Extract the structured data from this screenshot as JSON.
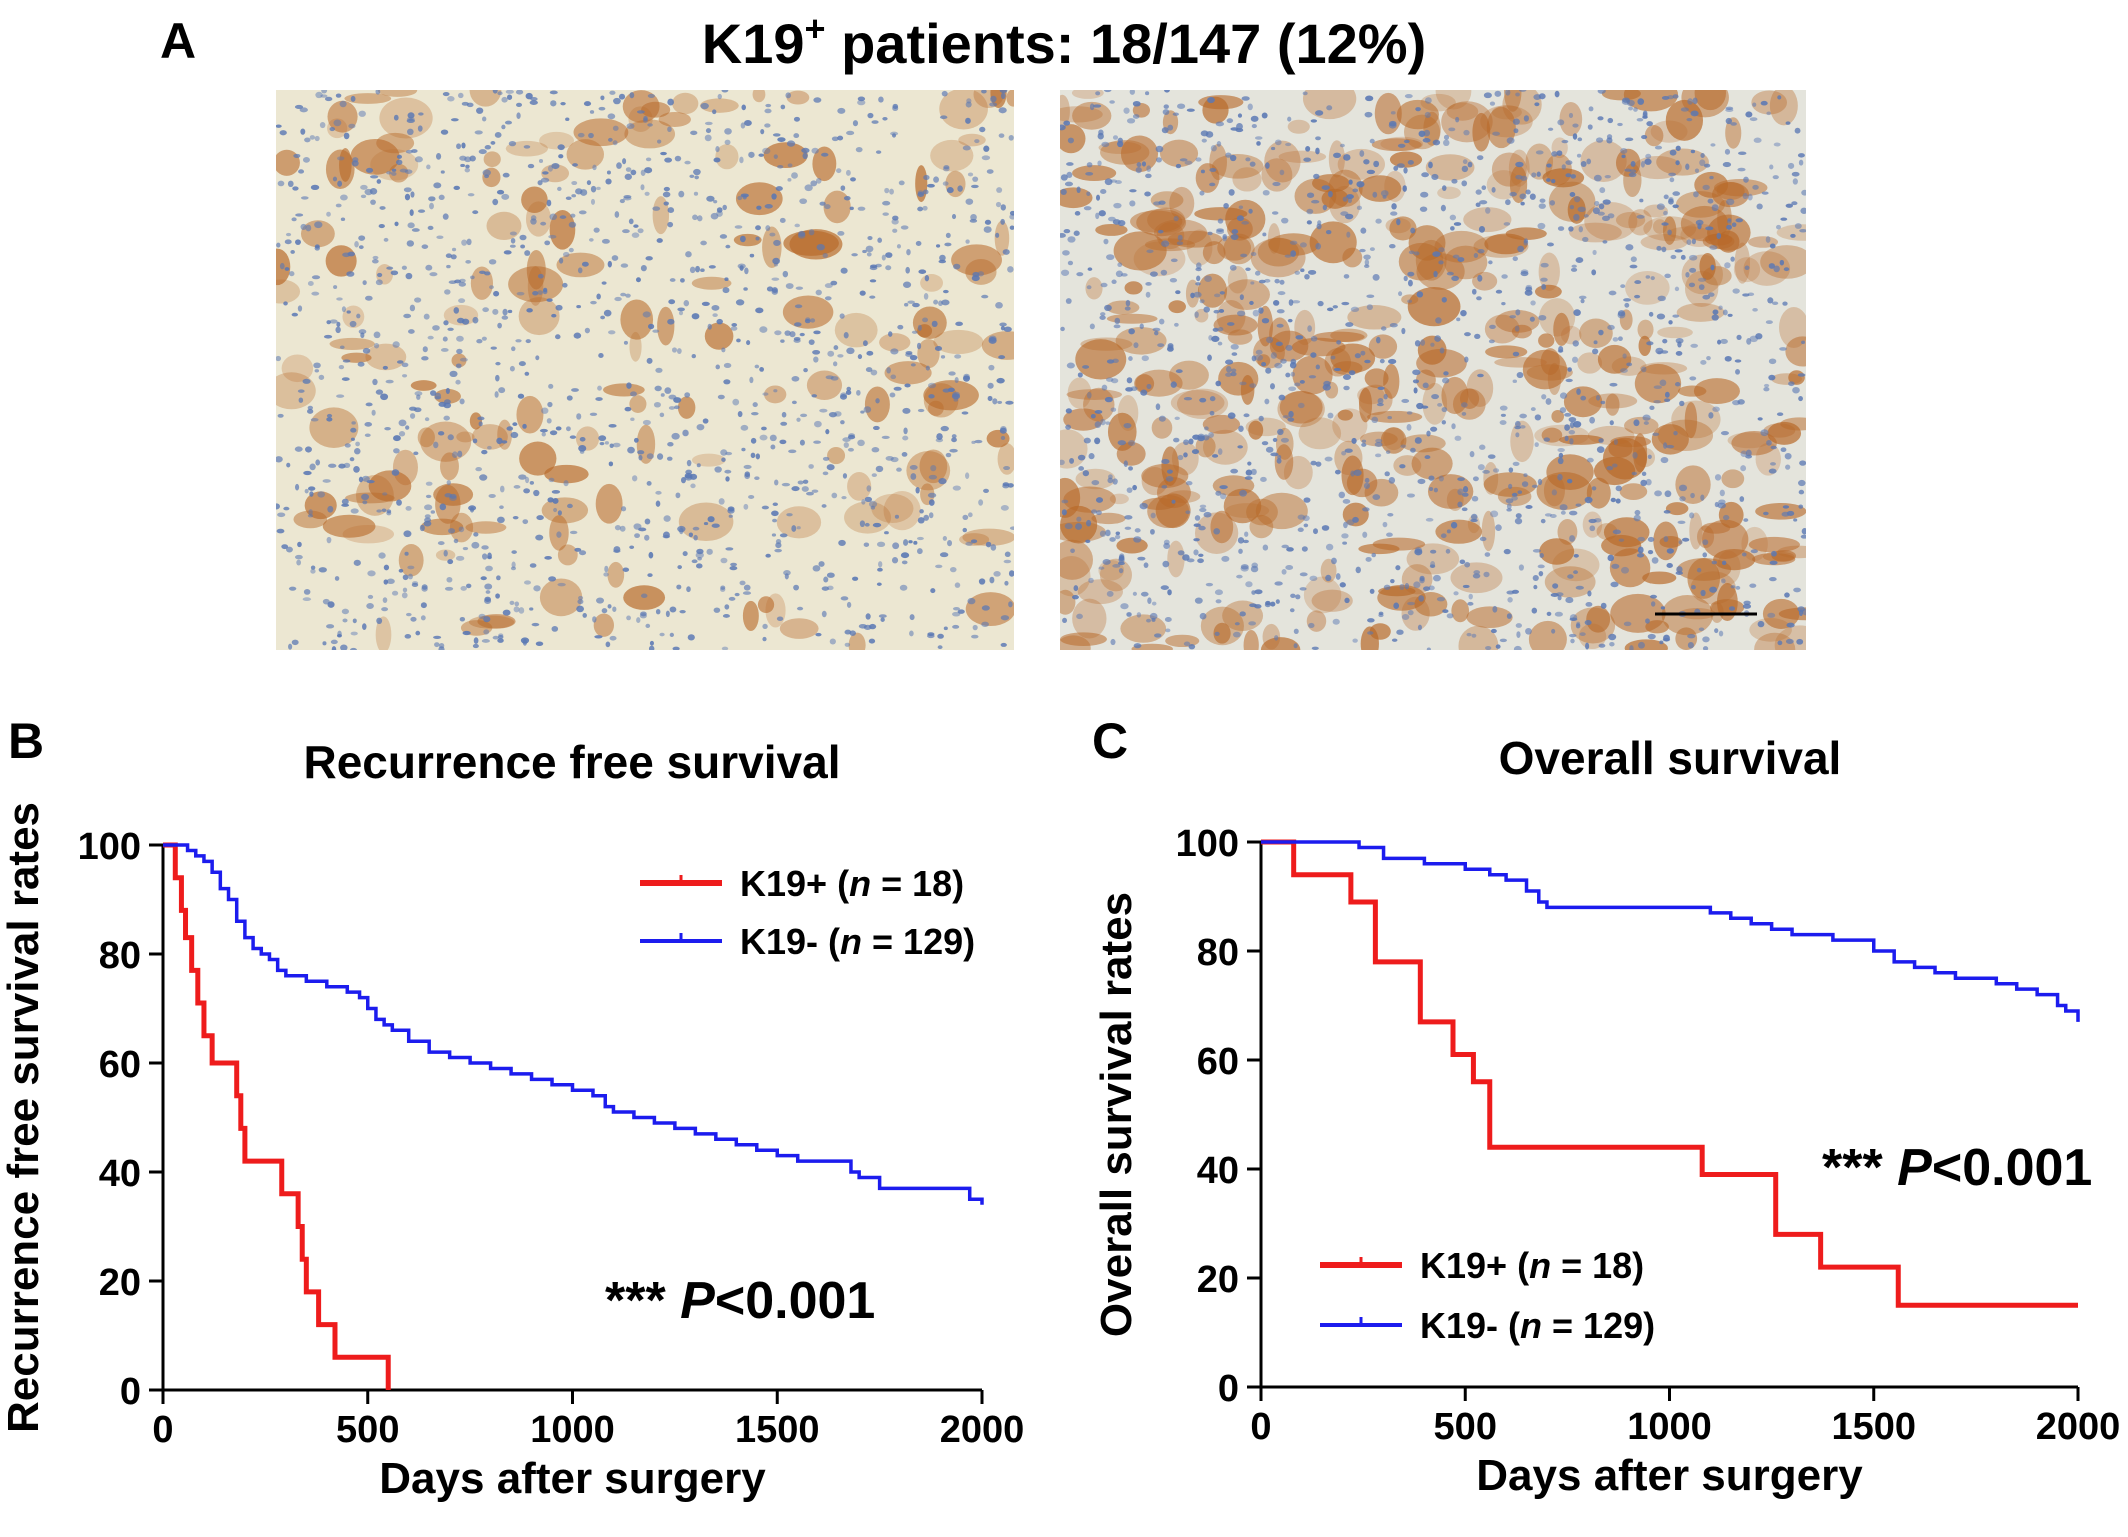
{
  "figure": {
    "panel_a": "A",
    "panel_b": "B",
    "panel_c": "C",
    "title_prefix": "K19",
    "title_sup": "+",
    "title_suffix": " patients: 18/147 (12%)"
  },
  "colors": {
    "k19_pos": "#ee1c1c",
    "k19_neg": "#1c1cee",
    "tissue_bg": "#ece6cc",
    "nuclei": "#5a78b4",
    "stain": "#b86a2a"
  },
  "chart_data": [
    {
      "type": "line",
      "title": "Recurrence free survival",
      "xlabel": "Days after surgery",
      "ylabel": "Recurrence free survival rates",
      "xlim": [
        0,
        2000
      ],
      "ylim": [
        0,
        100
      ],
      "xticks": [
        0,
        500,
        1000,
        1500,
        2000
      ],
      "yticks": [
        0,
        20,
        40,
        60,
        80,
        100
      ],
      "annotation": {
        "stars": "***",
        "p": "P",
        "value": "<0.001"
      },
      "legend_position": "top-right",
      "series": [
        {
          "name_main": "K19+ (",
          "name_n": "n",
          "name_rest": " = 18)",
          "color": "#ee1c1c",
          "x": [
            0,
            30,
            45,
            55,
            70,
            85,
            100,
            120,
            150,
            180,
            190,
            200,
            210,
            290,
            300,
            330,
            340,
            350,
            370,
            380,
            400,
            420,
            440,
            540,
            550
          ],
          "y": [
            100,
            94,
            88,
            83,
            77,
            71,
            65,
            60,
            60,
            54,
            48,
            42,
            42,
            36,
            36,
            30,
            24,
            18,
            18,
            12,
            12,
            6,
            6,
            6,
            0
          ]
        },
        {
          "name_main": "K19- (",
          "name_n": "n",
          "name_rest": " = 129)",
          "color": "#1c1cee",
          "x": [
            0,
            40,
            60,
            80,
            100,
            120,
            140,
            160,
            180,
            200,
            220,
            240,
            260,
            280,
            300,
            350,
            400,
            450,
            480,
            500,
            520,
            540,
            560,
            600,
            650,
            700,
            750,
            800,
            850,
            900,
            950,
            1000,
            1050,
            1080,
            1100,
            1150,
            1200,
            1250,
            1300,
            1350,
            1400,
            1450,
            1500,
            1550,
            1600,
            1650,
            1680,
            1700,
            1750,
            1800,
            1850,
            1900,
            1950,
            1970,
            2000
          ],
          "y": [
            100,
            100,
            99,
            98,
            97,
            95,
            92,
            90,
            86,
            83,
            81,
            80,
            79,
            77,
            76,
            75,
            74,
            73,
            72,
            70,
            68,
            67,
            66,
            64,
            62,
            61,
            60,
            59,
            58,
            57,
            56,
            55,
            54,
            52,
            51,
            50,
            49,
            48,
            47,
            46,
            45,
            44,
            43,
            42,
            42,
            42,
            40,
            39,
            37,
            37,
            37,
            37,
            37,
            35,
            34
          ]
        }
      ]
    },
    {
      "type": "line",
      "title": "Overall survival",
      "xlabel": "Days after surgery",
      "ylabel": "Overall survival rates",
      "xlim": [
        0,
        2000
      ],
      "ylim": [
        0,
        100
      ],
      "xticks": [
        0,
        500,
        1000,
        1500,
        2000
      ],
      "yticks": [
        0,
        20,
        40,
        60,
        80,
        100
      ],
      "annotation": {
        "stars": "***",
        "p": "P",
        "value": "<0.001"
      },
      "legend_position": "bottom-left",
      "series": [
        {
          "name_main": "K19+ (",
          "name_n": "n",
          "name_rest": " = 18)",
          "color": "#ee1c1c",
          "x": [
            0,
            80,
            220,
            280,
            390,
            470,
            520,
            560,
            1080,
            1260,
            1370,
            1560,
            2000
          ],
          "y": [
            100,
            94,
            89,
            78,
            67,
            61,
            56,
            44,
            39,
            28,
            22,
            15,
            15
          ]
        },
        {
          "name_main": "K19- (",
          "name_n": "n",
          "name_rest": " = 129)",
          "color": "#1c1cee",
          "x": [
            0,
            200,
            240,
            300,
            400,
            500,
            560,
            600,
            650,
            680,
            700,
            800,
            900,
            1000,
            1100,
            1150,
            1200,
            1250,
            1300,
            1350,
            1400,
            1450,
            1500,
            1550,
            1600,
            1650,
            1700,
            1750,
            1800,
            1850,
            1900,
            1950,
            1970,
            2000
          ],
          "y": [
            100,
            100,
            99,
            97,
            96,
            95,
            94,
            93,
            91,
            89,
            88,
            88,
            88,
            88,
            87,
            86,
            85,
            84,
            83,
            83,
            82,
            82,
            80,
            78,
            77,
            76,
            75,
            75,
            74,
            73,
            72,
            70,
            69,
            67
          ]
        }
      ]
    }
  ]
}
